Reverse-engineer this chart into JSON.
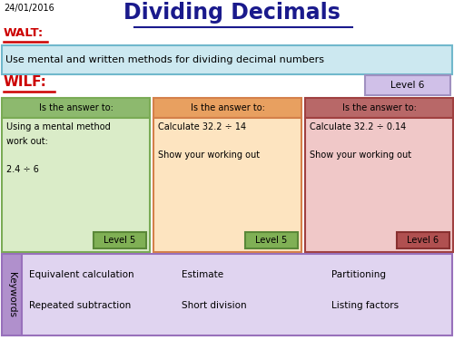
{
  "title": "Dividing Decimals",
  "date": "24/01/2016",
  "walt_label": "WALT:",
  "walt_text": "Use mental and written methods for dividing decimal numbers",
  "wilf_label": "WILF:",
  "level6_badge": "Level 6",
  "bg_color": "#ffffff",
  "walt_box_color": "#cce8f0",
  "walt_border_color": "#70b8cc",
  "col1_header_color": "#8db96e",
  "col1_body_color": "#daecc8",
  "col1_border_color": "#7aab55",
  "col2_header_color": "#e8a060",
  "col2_body_color": "#fde4c0",
  "col2_border_color": "#d4804a",
  "col3_header_color": "#b86868",
  "col3_body_color": "#f0c8c8",
  "col3_border_color": "#a04040",
  "keywords_sidebar_color": "#b090cc",
  "keywords_body_color": "#e0d4f0",
  "keywords_border_color": "#9870bb",
  "level5_color": "#80b055",
  "level5_border": "#5a8838",
  "level6_color": "#b05050",
  "level6_border": "#883030",
  "level6_badge_color": "#d0c0e8",
  "level6_badge_border": "#a090c0",
  "col1_header": "Is the answer to:",
  "col2_header": "Is the answer to:",
  "col3_header": "Is the answer to:",
  "col1_body": "Using a mental method\nwork out:\n\n2.4 ÷ 6",
  "col2_body": "Calculate 32.2 ÷ 14\n\nShow your working out",
  "col3_body": "Calculate 32.2 ÷ 0.14\n\nShow your working out",
  "col1_level": "Level 5",
  "col2_level": "Level 5",
  "col3_level": "Level 6",
  "keywords_label": "Keywords",
  "keywords": [
    "Equivalent calculation",
    "Estimate",
    "Partitioning",
    "Repeated subtraction",
    "Short division",
    "Listing factors"
  ],
  "title_color": "#1a1a8c",
  "walt_color": "#cc0000",
  "wilf_color": "#cc0000"
}
